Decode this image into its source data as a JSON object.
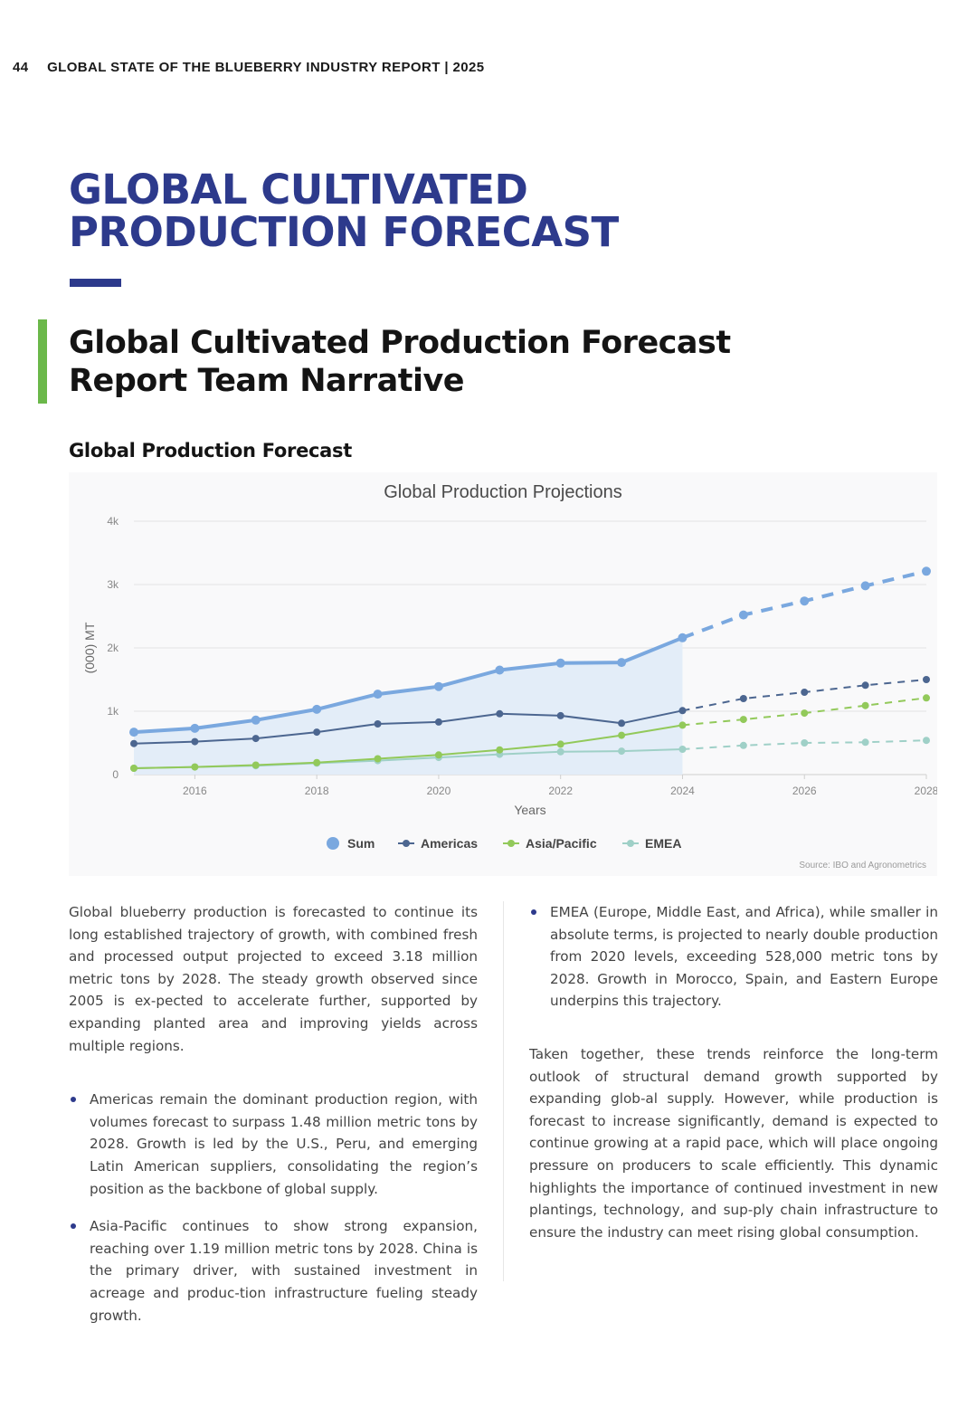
{
  "header": {
    "page_number": "44",
    "report_title": "GLOBAL STATE OF THE BLUEBERRY INDUSTRY REPORT | 2025"
  },
  "main_title": {
    "line1": "GLOBAL CULTIVATED",
    "line2": "PRODUCTION FORECAST"
  },
  "section_title": {
    "line1": "Global Cultivated Production Forecast",
    "line2": "Report Team Narrative"
  },
  "sub_heading": "Global Production Forecast",
  "colors": {
    "title_navy": "#2d3a8c",
    "accent_green": "#6bb84a",
    "sum": "#7aa8df",
    "americas": "#4c6690",
    "asia_pacific": "#92c95a",
    "emea": "#9fd0c7",
    "area_fill": "#e3edf8"
  },
  "chart_data": {
    "type": "line",
    "title": "Global Production Projections",
    "xlabel": "Years",
    "ylabel": "(000) MT",
    "x": [
      2015,
      2016,
      2017,
      2018,
      2019,
      2020,
      2021,
      2022,
      2023,
      2024,
      2025,
      2026,
      2027,
      2028
    ],
    "xlim": [
      2015,
      2028
    ],
    "ylim": [
      0,
      4000
    ],
    "x_ticks": [
      "2016",
      "2018",
      "2020",
      "2022",
      "2024",
      "2026",
      "2028"
    ],
    "y_ticks": [
      "0",
      "1k",
      "2k",
      "3k",
      "4k"
    ],
    "forecast_from": 2024,
    "grid": true,
    "legend_position": "bottom",
    "series": [
      {
        "name": "Sum",
        "values": [
          670,
          730,
          860,
          1030,
          1270,
          1390,
          1650,
          1760,
          1770,
          2160,
          2520,
          2740,
          2980,
          3210
        ]
      },
      {
        "name": "Americas",
        "values": [
          490,
          520,
          570,
          670,
          800,
          830,
          960,
          930,
          810,
          1010,
          1200,
          1300,
          1410,
          1500
        ]
      },
      {
        "name": "Asia/Pacific",
        "values": [
          100,
          120,
          150,
          190,
          250,
          310,
          390,
          480,
          620,
          780,
          870,
          970,
          1090,
          1210
        ]
      },
      {
        "name": "EMEA",
        "values": [
          100,
          120,
          140,
          180,
          220,
          270,
          320,
          360,
          370,
          400,
          460,
          500,
          510,
          540
        ]
      }
    ],
    "source": "Source: IBO and Agronometrics"
  },
  "body": {
    "intro": "Global blueberry production is forecasted to continue its long established trajectory of growth, with combined fresh and processed output projected to exceed 3.18 million metric tons by 2028. The steady growth observed since 2005 is ex-pected to accelerate further, supported by expanding planted area and improving yields across multiple regions.",
    "bullet_americas": "Americas remain the dominant production region, with volumes forecast to surpass 1.48 million metric tons by 2028. Growth is led by the U.S., Peru, and emerging Latin American suppliers, consolidating the region’s position as the backbone of global supply.",
    "bullet_asia": "Asia-Pacific continues to show strong expansion, reaching over 1.19 million metric tons by 2028. China is the primary driver, with sustained investment in acreage and produc-tion infrastructure fueling steady growth.",
    "bullet_emea": "EMEA (Europe, Middle East, and Africa), while smaller in absolute terms, is projected to nearly double production from 2020 levels, exceeding 528,000 metric tons by 2028. Growth in Morocco, Spain, and Eastern Europe underpins this trajectory.",
    "conclusion": "Taken together, these trends reinforce the long-term outlook of structural demand growth supported by expanding glob-al supply. However, while production is forecast to increase significantly, demand is expected to continue growing at a rapid pace, which will place ongoing pressure on producers to scale efficiently. This dynamic highlights the importance of continued investment in new plantings, technology, and sup-ply chain infrastructure to ensure the industry can meet rising global consumption."
  }
}
